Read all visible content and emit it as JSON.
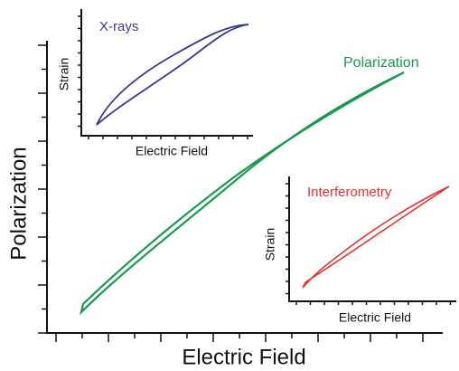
{
  "main": {
    "x_label": "Electric Field",
    "y_label": "Polarization",
    "curve_label": "Polarization"
  },
  "insets": [
    {
      "title": "X-rays",
      "x_label": "Electric Field",
      "y_label": "Strain"
    },
    {
      "title": "Interferometry",
      "x_label": "Electric Field",
      "y_label": "Strain"
    }
  ]
}
